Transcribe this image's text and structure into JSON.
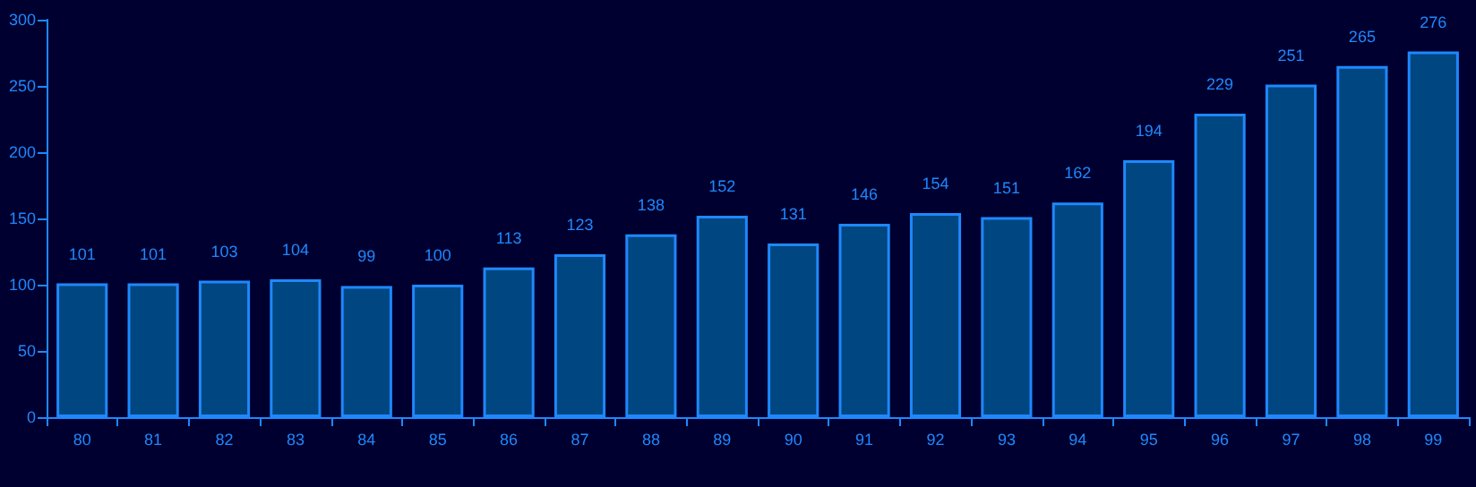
{
  "chart_data": {
    "type": "bar",
    "categories": [
      "80",
      "81",
      "82",
      "83",
      "84",
      "85",
      "86",
      "87",
      "88",
      "89",
      "90",
      "91",
      "92",
      "93",
      "94",
      "95",
      "96",
      "97",
      "98",
      "99"
    ],
    "values": [
      101,
      101,
      103,
      104,
      99,
      100,
      113,
      123,
      138,
      152,
      131,
      146,
      154,
      151,
      162,
      194,
      229,
      251,
      265,
      276
    ],
    "color": "#004680",
    "ylim": [
      0,
      300
    ],
    "yticks": [
      0,
      50,
      100,
      150,
      200,
      250,
      300
    ],
    "grid": false,
    "data_labels": true
  }
}
